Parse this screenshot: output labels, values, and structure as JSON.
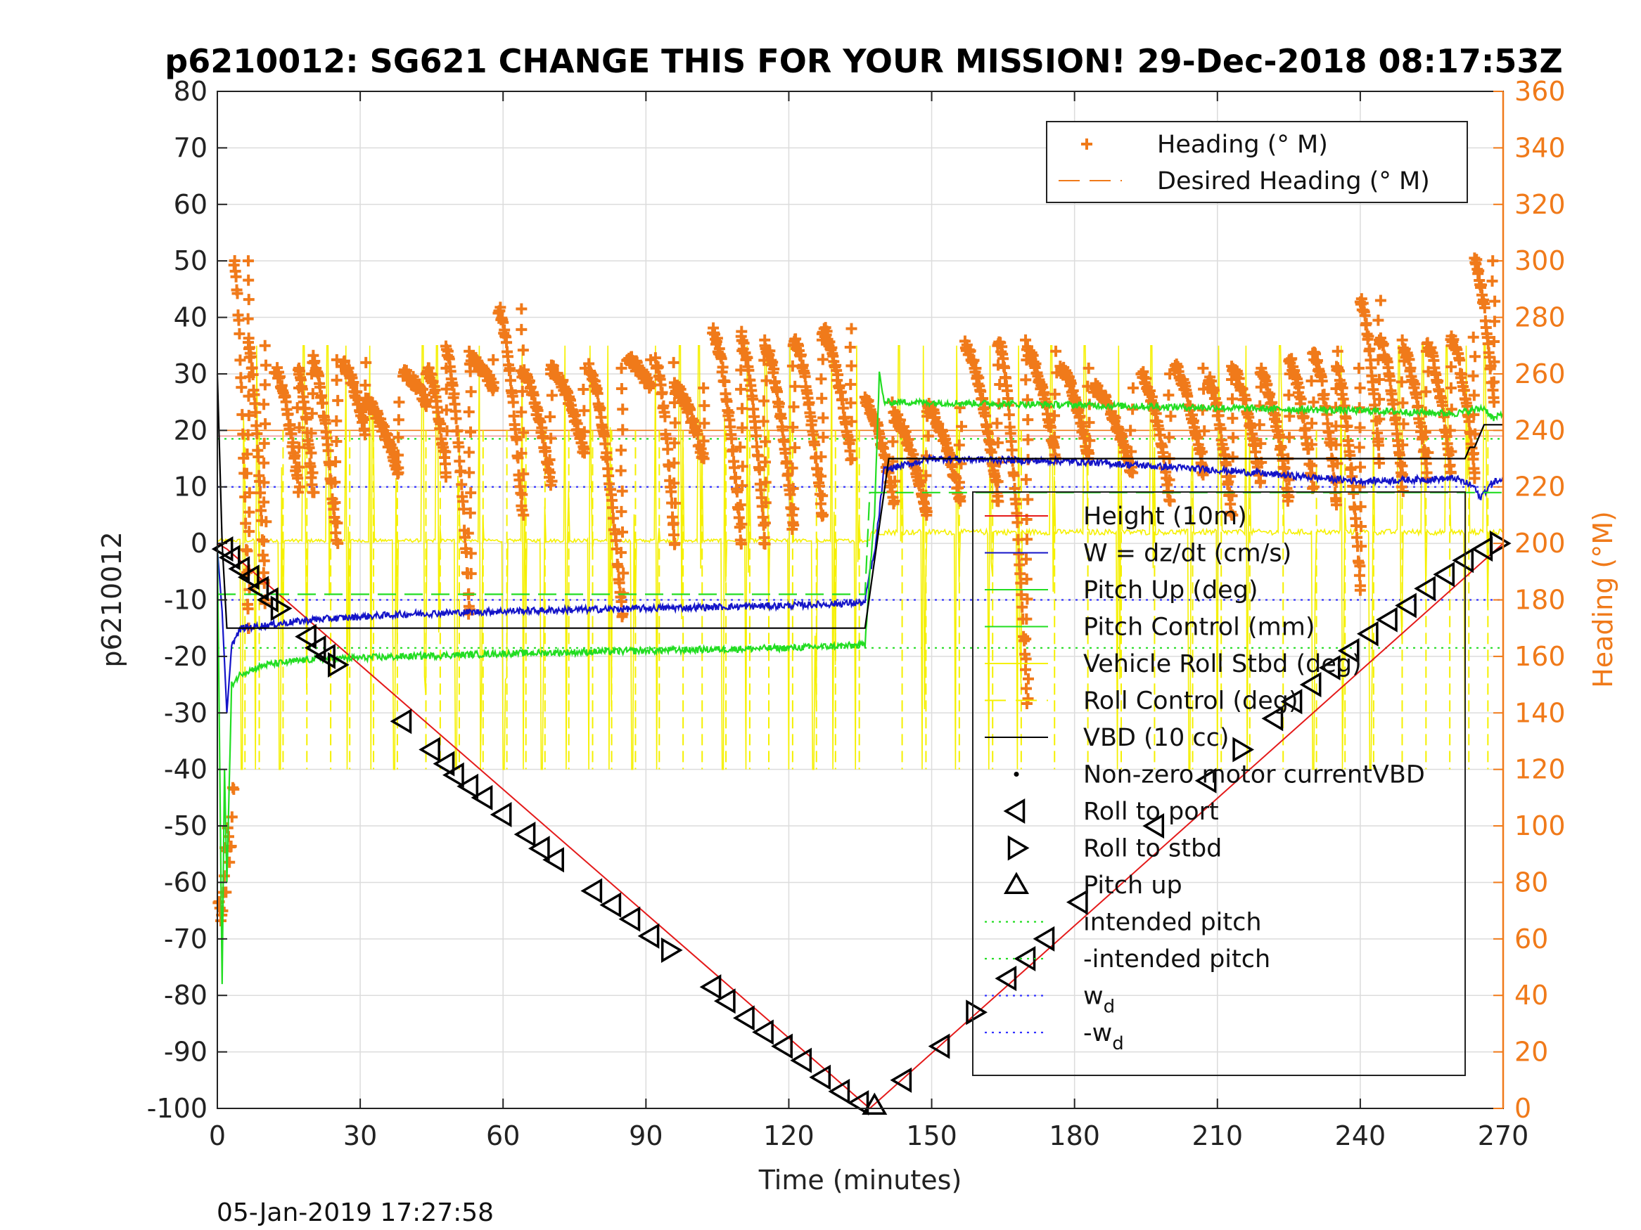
{
  "chart_data": {
    "type": "line",
    "title": "p6210012: SG621 CHANGE THIS FOR YOUR MISSION! 29-Dec-2018 08:17:53Z",
    "xlabel": "Time (minutes)",
    "ylabel": "p6210012",
    "y2label": "Heading (°M)",
    "footer": "05-Jan-2019 17:27:58",
    "xlim": [
      0,
      270
    ],
    "ylim": [
      -100,
      80
    ],
    "y2lim": [
      0,
      360
    ],
    "xticks": [
      "0",
      "30",
      "60",
      "90",
      "120",
      "150",
      "180",
      "210",
      "240",
      "270"
    ],
    "yticks": [
      "80",
      "70",
      "60",
      "50",
      "40",
      "30",
      "20",
      "10",
      "0",
      "-10",
      "-20",
      "-30",
      "-40",
      "-50",
      "-60",
      "-70",
      "-80",
      "-90",
      "-100"
    ],
    "y2ticks": [
      "360",
      "340",
      "320",
      "300",
      "280",
      "260",
      "240",
      "220",
      "200",
      "180",
      "160",
      "140",
      "120",
      "100",
      "80",
      "60",
      "40",
      "20",
      "0"
    ],
    "grid": true,
    "colors": {
      "heading": "#f07a1a",
      "height": "#e41a1a",
      "w": "#1414c8",
      "pitch": "#22dd22",
      "roll": "#f5f000",
      "vbd": "#000000",
      "wd": "#3333ff"
    },
    "legend_top": [
      {
        "label": "Heading (° M)",
        "style": "plus",
        "color": "#f07a1a"
      },
      {
        "label": "Desired Heading (° M)",
        "style": "dash",
        "color": "#f07a1a"
      }
    ],
    "legend_bottom": [
      {
        "label": "Height (10m)",
        "style": "line",
        "color": "#e41a1a"
      },
      {
        "label": "W = dz/dt (cm/s)",
        "style": "line",
        "color": "#1414c8"
      },
      {
        "label": "Pitch Up (deg)",
        "style": "line",
        "color": "#22dd22"
      },
      {
        "label": "Pitch Control (mm)",
        "style": "line",
        "color": "#22dd22"
      },
      {
        "label": "Vehicle Roll Stbd (deg)",
        "style": "line",
        "color": "#f5f000"
      },
      {
        "label": "Roll Control (deg)",
        "style": "dash",
        "color": "#f5f000"
      },
      {
        "label": "VBD (10 cc)",
        "style": "line",
        "color": "#000000"
      },
      {
        "label": "Non-zero motor currentVBD",
        "style": "dot",
        "color": "#000000"
      },
      {
        "label": "Roll to port",
        "style": "tri-left",
        "color": "#000000"
      },
      {
        "label": "Roll to stbd",
        "style": "tri-right",
        "color": "#000000"
      },
      {
        "label": "Pitch up",
        "style": "tri-up",
        "color": "#000000"
      },
      {
        "label": "intended pitch",
        "style": "dotted",
        "color": "#22dd22"
      },
      {
        "label": "-intended pitch",
        "style": "dotted",
        "color": "#22dd22"
      },
      {
        "label": "w",
        "sub": "d",
        "style": "dotted",
        "color": "#3333ff"
      },
      {
        "label": "-w",
        "sub": "d",
        "style": "dotted",
        "color": "#3333ff"
      }
    ],
    "series": [
      {
        "name": "Height (10m)",
        "color": "#e41a1a",
        "x": [
          0,
          2,
          137,
          270
        ],
        "y": [
          0,
          -1,
          -100,
          0
        ]
      },
      {
        "name": "W = dz/dt (cm/s)",
        "color": "#1414c8",
        "x": [
          0,
          1,
          2,
          3,
          5,
          10,
          20,
          40,
          60,
          90,
          120,
          136,
          137,
          138,
          140,
          150,
          180,
          210,
          240,
          260,
          264,
          265,
          268,
          270
        ],
        "y": [
          -1,
          -12,
          -30,
          -18,
          -15,
          -14.5,
          -13.5,
          -12.5,
          -12,
          -11.5,
          -11,
          -10.5,
          -5,
          -2,
          13,
          15,
          14.5,
          13,
          11,
          11.5,
          10,
          8,
          11,
          11
        ]
      },
      {
        "name": "Pitch Up (deg)",
        "color": "#22dd22",
        "x": [
          0,
          1,
          1.5,
          2,
          3,
          5,
          10,
          20,
          40,
          60,
          90,
          120,
          136,
          137,
          138,
          139,
          140,
          145,
          180,
          210,
          240,
          260,
          266,
          268,
          270
        ],
        "y": [
          0,
          -78,
          -40,
          -60,
          -25,
          -23,
          -21.5,
          -20.5,
          -20,
          -19.5,
          -19,
          -18.5,
          -18,
          -5,
          5,
          30,
          25,
          25,
          24.5,
          24,
          23.5,
          23,
          24,
          22,
          23
        ]
      },
      {
        "name": "Pitch Control (mm)",
        "color": "#22dd22",
        "dashed": true,
        "x": [
          0,
          5,
          136,
          137,
          140,
          270
        ],
        "y": [
          -9,
          -9,
          -9,
          9,
          9,
          9
        ]
      },
      {
        "name": "VBD (10 cc)",
        "color": "#000000",
        "x": [
          0,
          1,
          2,
          136,
          141,
          262,
          263,
          264,
          266,
          270
        ],
        "y": [
          30,
          0,
          -15,
          -15,
          15,
          15,
          17,
          17,
          21,
          21
        ]
      }
    ],
    "reference_lines": [
      {
        "name": "intended pitch",
        "y": 18.5,
        "color": "#22dd22"
      },
      {
        "name": "-intended pitch",
        "y": -18.5,
        "color": "#22dd22"
      },
      {
        "name": "w_d",
        "y": 10,
        "color": "#3333ff"
      },
      {
        "name": "-w_d",
        "y": -10,
        "color": "#3333ff"
      }
    ],
    "desired_heading": 240,
    "roll_spikes_t": [
      5,
      8,
      13,
      18,
      23,
      27,
      32,
      37,
      43,
      46,
      50,
      55,
      60,
      64,
      68,
      73,
      78,
      82,
      87,
      92,
      97,
      101,
      106,
      111,
      115,
      120,
      125,
      129,
      134,
      143,
      148,
      155,
      162,
      168,
      175,
      182,
      189,
      196,
      204,
      210,
      216,
      223,
      230,
      236,
      242,
      248,
      253,
      258,
      262,
      266
    ],
    "heading_cycles": [
      {
        "t0": 3.5,
        "t1": 6.5,
        "h0": 300,
        "h1": 170
      },
      {
        "t0": 6.5,
        "t1": 10,
        "h0": 270,
        "h1": 180
      },
      {
        "t0": 12,
        "t1": 17,
        "h0": 262,
        "h1": 220
      },
      {
        "t0": 17,
        "t1": 20,
        "h0": 260,
        "h1": 218
      },
      {
        "t0": 20,
        "t1": 25,
        "h0": 265,
        "h1": 200
      },
      {
        "t0": 26,
        "t1": 31,
        "h0": 264,
        "h1": 240
      },
      {
        "t0": 31,
        "t1": 38,
        "h0": 250,
        "h1": 225
      },
      {
        "t0": 39,
        "t1": 44,
        "h0": 260,
        "h1": 250
      },
      {
        "t0": 44,
        "t1": 48,
        "h0": 262,
        "h1": 225
      },
      {
        "t0": 48,
        "t1": 53,
        "h0": 268,
        "h1": 175
      },
      {
        "t0": 53,
        "t1": 58,
        "h0": 265,
        "h1": 255
      },
      {
        "t0": 59,
        "t1": 64,
        "h0": 283,
        "h1": 210
      },
      {
        "t0": 64,
        "t1": 70,
        "h0": 260,
        "h1": 222
      },
      {
        "t0": 70,
        "t1": 77,
        "h0": 262,
        "h1": 232
      },
      {
        "t0": 78,
        "t1": 85,
        "h0": 262,
        "h1": 175
      },
      {
        "t0": 86,
        "t1": 91,
        "h0": 265,
        "h1": 255
      },
      {
        "t0": 92,
        "t1": 96,
        "h0": 264,
        "h1": 200
      },
      {
        "t0": 96,
        "t1": 102,
        "h0": 255,
        "h1": 230
      },
      {
        "t0": 104,
        "t1": 110,
        "h0": 275,
        "h1": 200
      },
      {
        "t0": 110,
        "t1": 115,
        "h0": 272,
        "h1": 200
      },
      {
        "t0": 115,
        "t1": 121,
        "h0": 270,
        "h1": 205
      },
      {
        "t0": 121,
        "t1": 127,
        "h0": 272,
        "h1": 210
      },
      {
        "t0": 127,
        "t1": 133,
        "h0": 276,
        "h1": 230
      },
      {
        "t0": 136,
        "t1": 142,
        "h0": 250,
        "h1": 215
      },
      {
        "t0": 142,
        "t1": 149,
        "h0": 245,
        "h1": 210
      },
      {
        "t0": 149,
        "t1": 156,
        "h0": 248,
        "h1": 215
      },
      {
        "t0": 157,
        "t1": 164,
        "h0": 270,
        "h1": 215
      },
      {
        "t0": 164,
        "t1": 170,
        "h0": 272,
        "h1": 145
      },
      {
        "t0": 170,
        "t1": 176,
        "h0": 268,
        "h1": 230
      },
      {
        "t0": 177,
        "t1": 183,
        "h0": 262,
        "h1": 230
      },
      {
        "t0": 184,
        "t1": 192,
        "h0": 255,
        "h1": 225
      },
      {
        "t0": 194,
        "t1": 200,
        "h0": 260,
        "h1": 215
      },
      {
        "t0": 201,
        "t1": 207,
        "h0": 262,
        "h1": 225
      },
      {
        "t0": 208,
        "t1": 213,
        "h0": 258,
        "h1": 210
      },
      {
        "t0": 213,
        "t1": 219,
        "h0": 262,
        "h1": 222
      },
      {
        "t0": 219,
        "t1": 225,
        "h0": 260,
        "h1": 215
      },
      {
        "t0": 225,
        "t1": 230,
        "h0": 265,
        "h1": 220
      },
      {
        "t0": 230,
        "t1": 235,
        "h0": 268,
        "h1": 215
      },
      {
        "t0": 235,
        "t1": 240,
        "h0": 262,
        "h1": 185
      },
      {
        "t0": 240,
        "t1": 244,
        "h0": 286,
        "h1": 230
      },
      {
        "t0": 244,
        "t1": 249,
        "h0": 272,
        "h1": 220
      },
      {
        "t0": 249,
        "t1": 254,
        "h0": 268,
        "h1": 225
      },
      {
        "t0": 254,
        "t1": 259,
        "h0": 270,
        "h1": 225
      },
      {
        "t0": 259,
        "t1": 264,
        "h0": 273,
        "h1": 225
      },
      {
        "t0": 264,
        "t1": 268,
        "h0": 300,
        "h1": 250
      }
    ],
    "heading_initial": {
      "t0": 0,
      "t1": 3.5,
      "h0": 60,
      "h1": 110
    },
    "markers": [
      {
        "x": 1.5,
        "y": -1,
        "shape": "tri-left"
      },
      {
        "x": 3,
        "y": -2.5,
        "shape": "tri-left"
      },
      {
        "x": 5,
        "y": -4.5,
        "shape": "tri-left"
      },
      {
        "x": 7,
        "y": -6,
        "shape": "tri-left"
      },
      {
        "x": 9,
        "y": -8,
        "shape": "tri-left"
      },
      {
        "x": 11,
        "y": -10,
        "shape": "tri-left"
      },
      {
        "x": 13,
        "y": -11.5,
        "shape": "tri-right"
      },
      {
        "x": 19,
        "y": -16.5,
        "shape": "tri-left"
      },
      {
        "x": 21,
        "y": -18.5,
        "shape": "tri-left"
      },
      {
        "x": 23,
        "y": -20,
        "shape": "tri-left"
      },
      {
        "x": 25,
        "y": -21.5,
        "shape": "tri-right"
      },
      {
        "x": 39,
        "y": -31.5,
        "shape": "tri-left"
      },
      {
        "x": 45,
        "y": -36.5,
        "shape": "tri-left"
      },
      {
        "x": 48,
        "y": -39,
        "shape": "tri-left"
      },
      {
        "x": 50,
        "y": -41,
        "shape": "tri-left"
      },
      {
        "x": 53,
        "y": -43,
        "shape": "tri-left"
      },
      {
        "x": 56,
        "y": -45,
        "shape": "tri-left"
      },
      {
        "x": 60,
        "y": -48,
        "shape": "tri-left"
      },
      {
        "x": 65,
        "y": -51.5,
        "shape": "tri-left"
      },
      {
        "x": 68,
        "y": -54,
        "shape": "tri-left"
      },
      {
        "x": 71,
        "y": -56,
        "shape": "tri-left"
      },
      {
        "x": 79,
        "y": -61.5,
        "shape": "tri-left"
      },
      {
        "x": 83,
        "y": -64,
        "shape": "tri-left"
      },
      {
        "x": 87,
        "y": -66.5,
        "shape": "tri-left"
      },
      {
        "x": 91,
        "y": -69.5,
        "shape": "tri-left"
      },
      {
        "x": 95,
        "y": -72,
        "shape": "tri-right"
      },
      {
        "x": 104,
        "y": -78.5,
        "shape": "tri-left"
      },
      {
        "x": 107,
        "y": -81,
        "shape": "tri-left"
      },
      {
        "x": 111,
        "y": -84,
        "shape": "tri-left"
      },
      {
        "x": 115,
        "y": -86.5,
        "shape": "tri-left"
      },
      {
        "x": 119,
        "y": -89,
        "shape": "tri-left"
      },
      {
        "x": 123,
        "y": -91.5,
        "shape": "tri-left"
      },
      {
        "x": 127,
        "y": -94.5,
        "shape": "tri-left"
      },
      {
        "x": 131,
        "y": -97,
        "shape": "tri-left"
      },
      {
        "x": 135,
        "y": -99,
        "shape": "tri-left"
      },
      {
        "x": 138,
        "y": -99.5,
        "shape": "tri-up"
      },
      {
        "x": 144,
        "y": -95,
        "shape": "tri-left"
      },
      {
        "x": 152,
        "y": -89,
        "shape": "tri-left"
      },
      {
        "x": 159,
        "y": -83,
        "shape": "tri-right"
      },
      {
        "x": 166,
        "y": -77,
        "shape": "tri-left"
      },
      {
        "x": 170,
        "y": -73.5,
        "shape": "tri-left"
      },
      {
        "x": 174,
        "y": -70,
        "shape": "tri-left"
      },
      {
        "x": 181,
        "y": -63.5,
        "shape": "tri-left"
      },
      {
        "x": 197,
        "y": -50,
        "shape": "tri-left"
      },
      {
        "x": 208,
        "y": -42,
        "shape": "tri-left"
      },
      {
        "x": 215,
        "y": -36.5,
        "shape": "tri-right"
      },
      {
        "x": 222,
        "y": -31,
        "shape": "tri-left"
      },
      {
        "x": 226,
        "y": -28,
        "shape": "tri-left"
      },
      {
        "x": 230,
        "y": -25,
        "shape": "tri-left"
      },
      {
        "x": 234,
        "y": -22,
        "shape": "tri-left"
      },
      {
        "x": 238,
        "y": -19,
        "shape": "tri-left"
      },
      {
        "x": 242,
        "y": -16,
        "shape": "tri-left"
      },
      {
        "x": 246,
        "y": -13.5,
        "shape": "tri-left"
      },
      {
        "x": 250,
        "y": -11,
        "shape": "tri-left"
      },
      {
        "x": 254,
        "y": -8,
        "shape": "tri-left"
      },
      {
        "x": 258,
        "y": -5.5,
        "shape": "tri-left"
      },
      {
        "x": 262,
        "y": -3,
        "shape": "tri-left"
      },
      {
        "x": 266,
        "y": -1,
        "shape": "tri-left"
      },
      {
        "x": 269,
        "y": 0,
        "shape": "tri-right"
      }
    ]
  }
}
